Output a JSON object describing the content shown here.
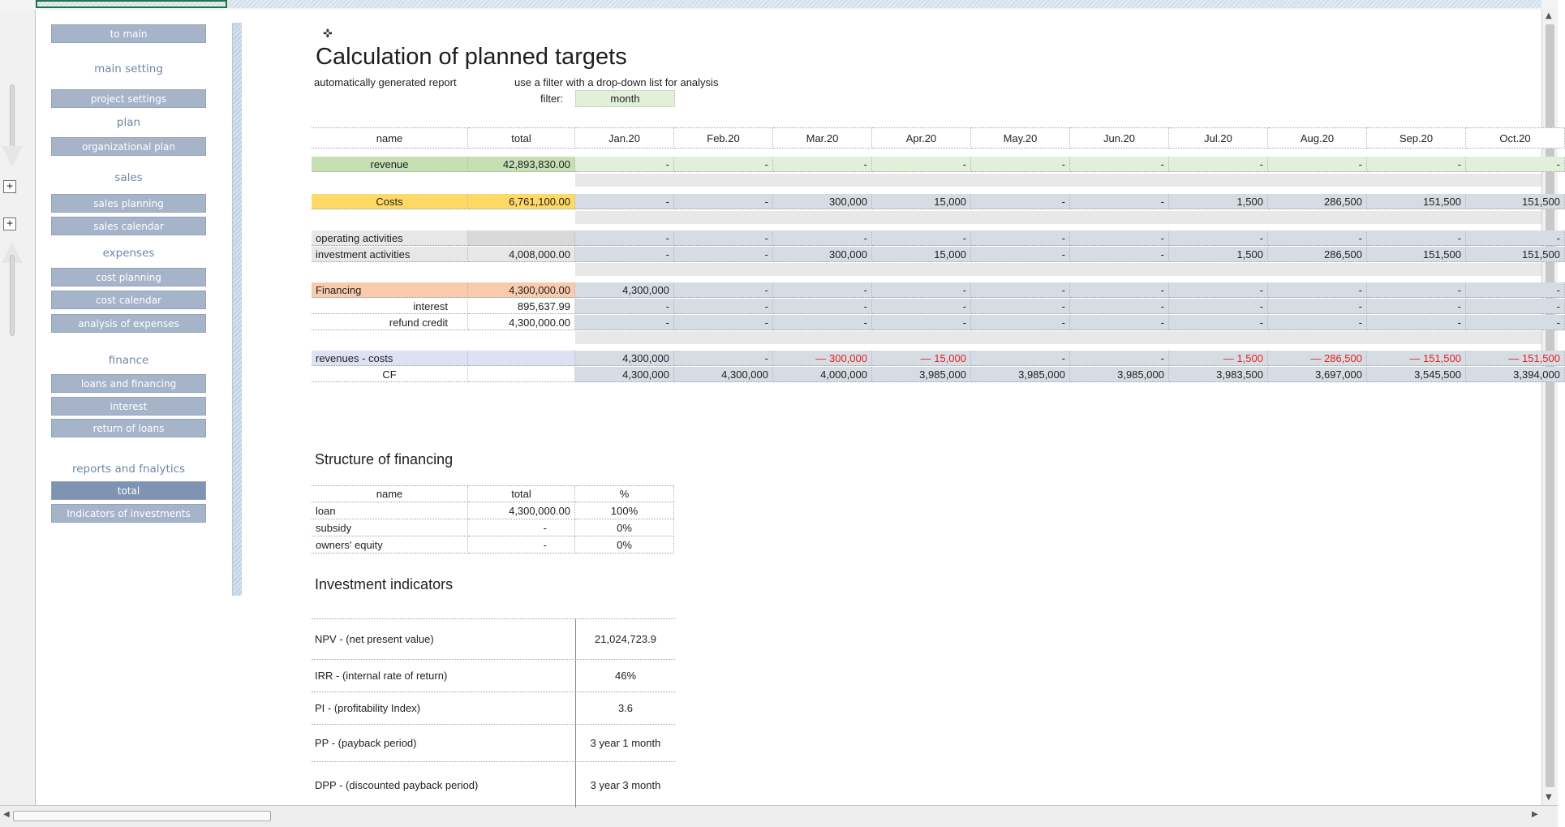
{
  "menu": {
    "to_main": "to main",
    "main_setting": "main setting",
    "project_settings": "project settings",
    "plan": "plan",
    "organizational_plan": "organizational plan",
    "sales": "sales",
    "sales_planning": "sales planning",
    "sales_calendar": "sales calendar",
    "expenses": "expenses",
    "cost_planning": "cost planning",
    "cost_calendar": "cost calendar",
    "analysis_of_expenses": "analysis of expenses",
    "finance": "finance",
    "loans_and_financing": "loans and financing",
    "interest": "interest",
    "return_of_loans": "return of loans",
    "reports": "reports and fnalytics",
    "total": "total",
    "indicators": "Indicators of investments"
  },
  "outline": {
    "plus": "+"
  },
  "header": {
    "title": "Calculation of planned targets",
    "sub1": "automatically generated report",
    "sub2": "use a filter with a drop-down list for analysis",
    "filter_label": "filter:",
    "filter_value": "month"
  },
  "table": {
    "col_name": "name",
    "col_total": "total",
    "months": [
      "Jan.20",
      "Feb.20",
      "Mar.20",
      "Apr.20",
      "May.20",
      "Jun.20",
      "Jul.20",
      "Aug.20",
      "Sep.20",
      "Oct.20"
    ],
    "rows": {
      "revenue": {
        "name": "revenue",
        "total": "42,893,830.00",
        "values": [
          "-",
          "-",
          "-",
          "-",
          "-",
          "-",
          "-",
          "-",
          "-",
          "-"
        ]
      },
      "costs": {
        "name": "Costs",
        "total": "6,761,100.00",
        "values": [
          "-",
          "-",
          "300,000",
          "15,000",
          "-",
          "-",
          "1,500",
          "286,500",
          "151,500",
          "151,500"
        ]
      },
      "operating": {
        "name": "operating activities",
        "total": "",
        "values": [
          "-",
          "-",
          "-",
          "-",
          "-",
          "-",
          "-",
          "-",
          "-",
          "-"
        ]
      },
      "investment": {
        "name": "investment activities",
        "total": "4,008,000.00",
        "values": [
          "-",
          "-",
          "300,000",
          "15,000",
          "-",
          "-",
          "1,500",
          "286,500",
          "151,500",
          "151,500"
        ]
      },
      "financing": {
        "name": "Financing",
        "total": "4,300,000.00",
        "values": [
          "4,300,000",
          "-",
          "-",
          "-",
          "-",
          "-",
          "-",
          "-",
          "-",
          "-"
        ]
      },
      "interest": {
        "name": "interest",
        "total": "895,637.99",
        "values": [
          "-",
          "-",
          "-",
          "-",
          "-",
          "-",
          "-",
          "-",
          "-",
          "-"
        ]
      },
      "refund": {
        "name": "refund credit",
        "total": "4,300,000.00",
        "values": [
          "-",
          "-",
          "-",
          "-",
          "-",
          "-",
          "-",
          "-",
          "-",
          "-"
        ]
      },
      "revcost": {
        "name": "revenues - costs",
        "total": "",
        "values": [
          "4,300,000",
          "-",
          "— 300,000",
          "— 15,000",
          "-",
          "-",
          "— 1,500",
          "— 286,500",
          "— 151,500",
          "— 151,500"
        ]
      },
      "cf": {
        "name": "CF",
        "total": "",
        "values": [
          "4,300,000",
          "4,300,000",
          "4,000,000",
          "3,985,000",
          "3,985,000",
          "3,985,000",
          "3,983,500",
          "3,697,000",
          "3,545,500",
          "3,394,000"
        ]
      }
    }
  },
  "structure": {
    "title": "Structure of financing",
    "col_name": "name",
    "col_total": "total",
    "col_pct": "%",
    "rows": [
      {
        "name": "loan",
        "total": "4,300,000.00",
        "pct": "100%"
      },
      {
        "name": "subsidy",
        "total": "-",
        "pct": "0%"
      },
      {
        "name": "owners' equity",
        "total": "-",
        "pct": "0%"
      }
    ]
  },
  "indicators": {
    "title": "Investment indicators",
    "rows": [
      {
        "label": "NPV -  (net present value)",
        "value": "21,024,723.9"
      },
      {
        "label": "IRR - (internal rate of return)",
        "value": "46%"
      },
      {
        "label": "PI - (profitability Index)",
        "value": "3.6"
      },
      {
        "label": "PP - (payback period)",
        "value": "3 year 1 month"
      },
      {
        "label": "DPP - (discounted payback period)",
        "value": "3 year 3 month"
      }
    ]
  }
}
